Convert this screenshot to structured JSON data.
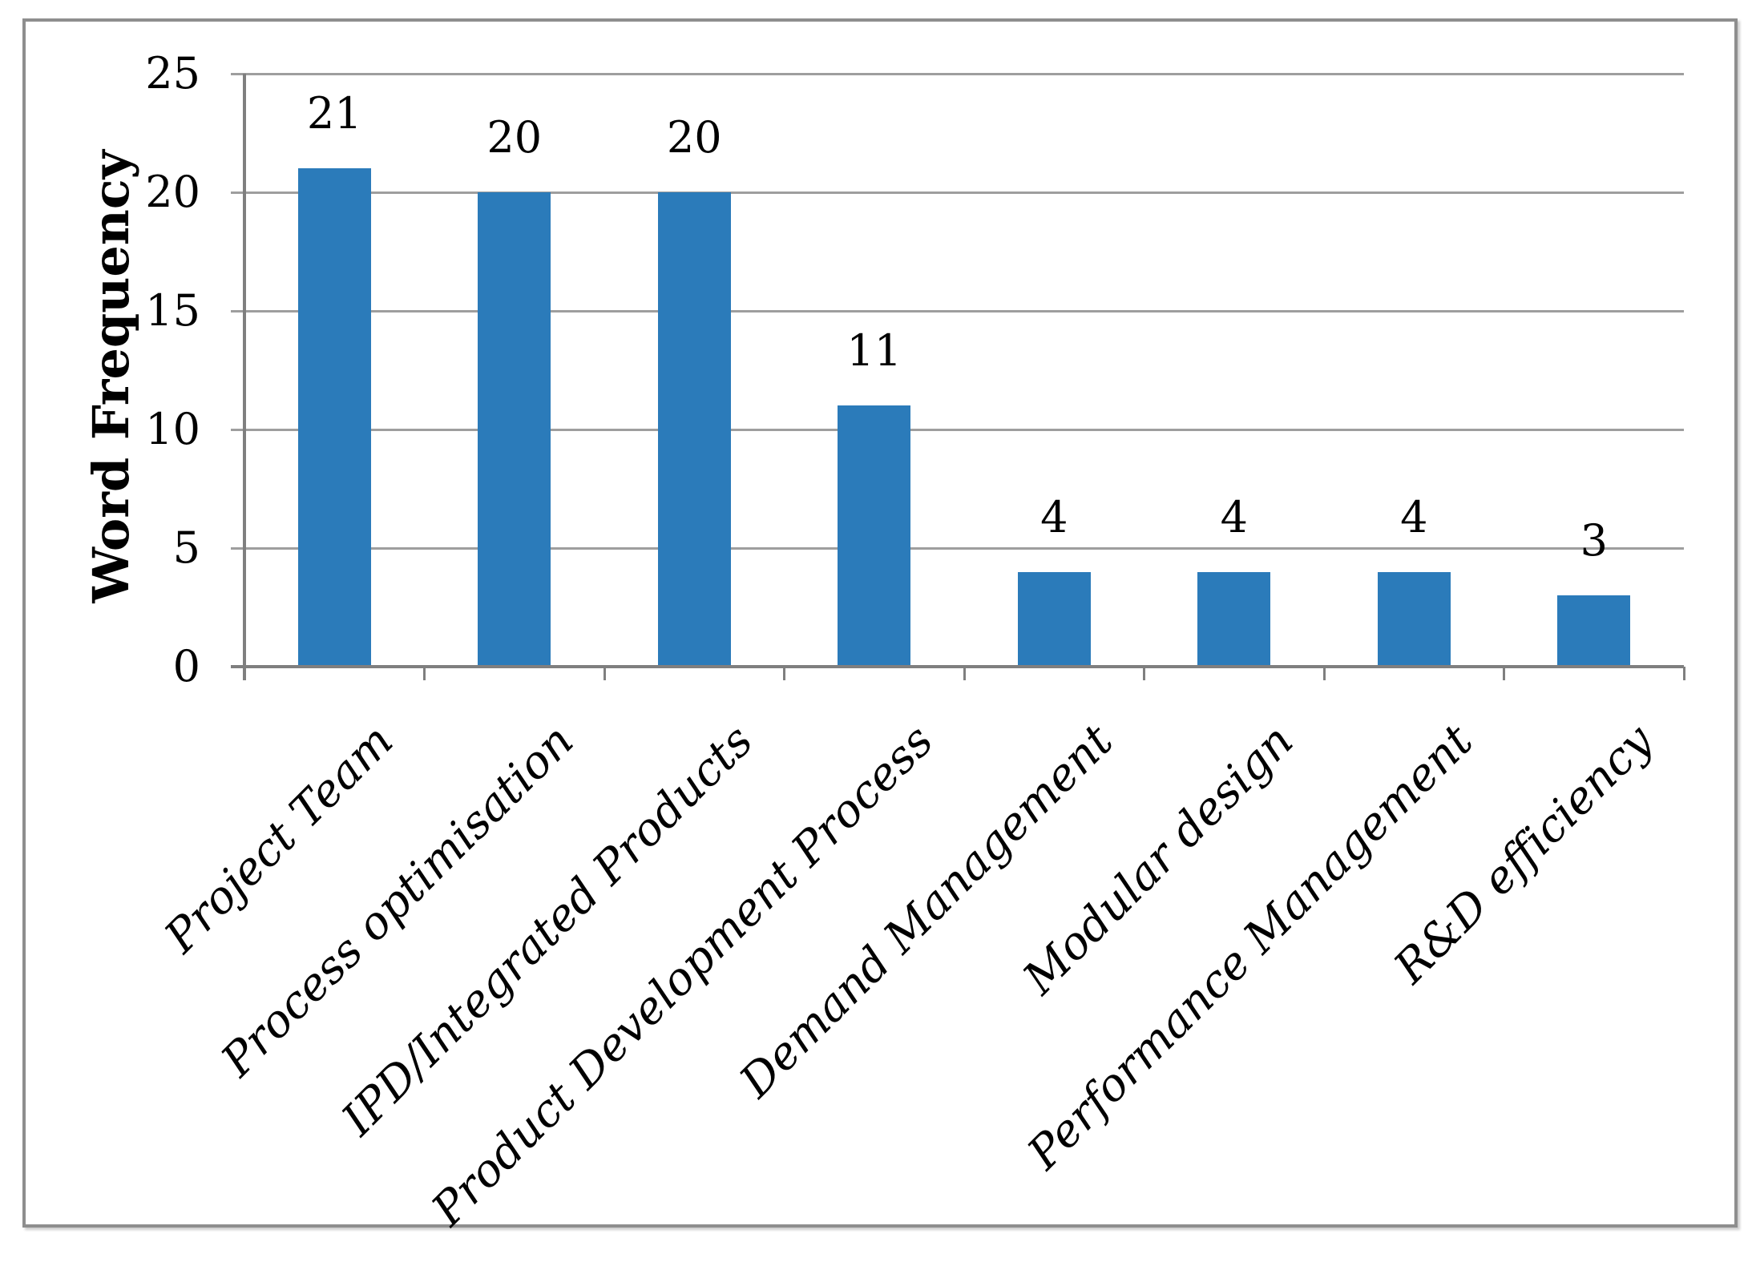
{
  "chart_data": {
    "type": "bar",
    "title": "",
    "xlabel": "",
    "ylabel": "Word Frequency",
    "categories": [
      "Project Team",
      "Process optimisation",
      "IPD/Integrated Products",
      "Product Development Process",
      "Demand Management",
      "Modular design",
      "Performance Management",
      "R&D efficiency"
    ],
    "values": [
      21,
      20,
      20,
      11,
      4,
      4,
      4,
      3
    ],
    "ylim": [
      0,
      25
    ],
    "yticks": [
      0,
      5,
      10,
      15,
      20,
      25
    ],
    "grid": true,
    "legend": false,
    "bar_color": "#2B7BBA",
    "gridline_color": "#9E9E9E",
    "axis_color": "#7F7F7F",
    "label_color": "#000000",
    "frame_border_color": "#8E8E8E",
    "background": "#FFFFFF"
  }
}
